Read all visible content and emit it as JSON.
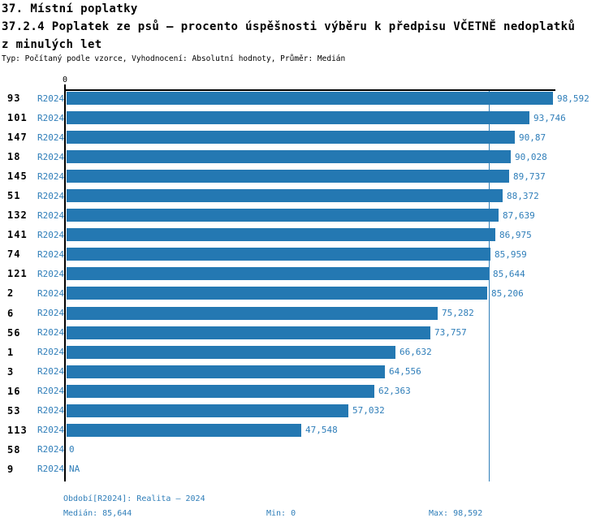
{
  "header": {
    "section_title": "37. Místní poplatky",
    "indicator_title_line1": "37.2.4 Poplatek ze psů – procento úspěšnosti výběru k předpisu VČETNĚ nedoplatků",
    "indicator_title_line2": "z minulých let",
    "meta": "Typ: Počítaný podle vzorce, Vyhodnocení: Absolutní hodnoty, Průměr: Medián"
  },
  "chart_data": {
    "type": "bar",
    "orientation": "horizontal",
    "title": "37.2.4 Poplatek ze psů – procento úspěšnosti výběru k předpisu VČETNĚ nedoplatků z minulých let",
    "x_axis_tick": "0",
    "xlim": [
      0,
      98.592
    ],
    "grid": false,
    "legend_position": "none",
    "series_name": "R2024",
    "median": 85.644,
    "rows": [
      {
        "category": "93",
        "period": "R2024",
        "value": 98.592,
        "label": "98,592"
      },
      {
        "category": "101",
        "period": "R2024",
        "value": 93.746,
        "label": "93,746"
      },
      {
        "category": "147",
        "period": "R2024",
        "value": 90.87,
        "label": "90,87"
      },
      {
        "category": "18",
        "period": "R2024",
        "value": 90.028,
        "label": "90,028"
      },
      {
        "category": "145",
        "period": "R2024",
        "value": 89.737,
        "label": "89,737"
      },
      {
        "category": "51",
        "period": "R2024",
        "value": 88.372,
        "label": "88,372"
      },
      {
        "category": "132",
        "period": "R2024",
        "value": 87.639,
        "label": "87,639"
      },
      {
        "category": "141",
        "period": "R2024",
        "value": 86.975,
        "label": "86,975"
      },
      {
        "category": "74",
        "period": "R2024",
        "value": 85.959,
        "label": "85,959"
      },
      {
        "category": "121",
        "period": "R2024",
        "value": 85.644,
        "label": "85,644"
      },
      {
        "category": "2",
        "period": "R2024",
        "value": 85.206,
        "label": "85,206"
      },
      {
        "category": "6",
        "period": "R2024",
        "value": 75.282,
        "label": "75,282"
      },
      {
        "category": "56",
        "period": "R2024",
        "value": 73.757,
        "label": "73,757"
      },
      {
        "category": "1",
        "period": "R2024",
        "value": 66.632,
        "label": "66,632"
      },
      {
        "category": "3",
        "period": "R2024",
        "value": 64.556,
        "label": "64,556"
      },
      {
        "category": "16",
        "period": "R2024",
        "value": 62.363,
        "label": "62,363"
      },
      {
        "category": "53",
        "period": "R2024",
        "value": 57.032,
        "label": "57,032"
      },
      {
        "category": "113",
        "period": "R2024",
        "value": 47.548,
        "label": "47,548"
      },
      {
        "category": "58",
        "period": "R2024",
        "value": 0,
        "label": "0"
      },
      {
        "category": "9",
        "period": "R2024",
        "value": null,
        "label": "NA"
      }
    ],
    "colors": {
      "bar": "#2478B2",
      "accent_text": "#2F7EB9",
      "axis": "#000000"
    }
  },
  "footer": {
    "period": "Období[R2024]: Realita – 2024",
    "median": "Medián: 85,644",
    "min": "Min: 0",
    "max": "Max: 98,592"
  }
}
